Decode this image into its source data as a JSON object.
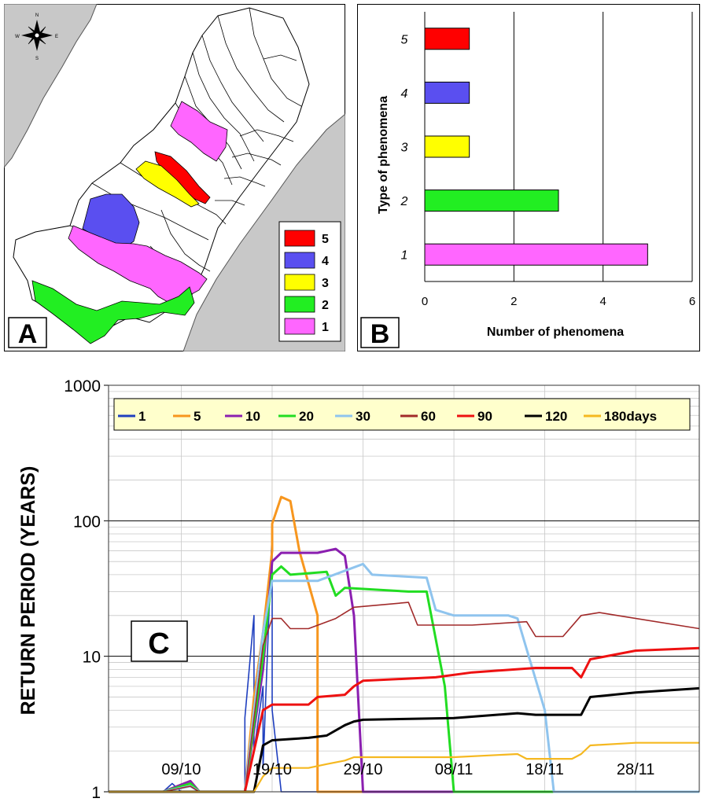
{
  "panel_a": {
    "letter": "A",
    "compass": {
      "n": "N",
      "s": "S",
      "e": "E",
      "w": "W"
    },
    "legend": [
      {
        "label": "5",
        "color": "#ff0000"
      },
      {
        "label": "4",
        "color": "#5a4ff0"
      },
      {
        "label": "3",
        "color": "#ffff00"
      },
      {
        "label": "2",
        "color": "#22ee22"
      },
      {
        "label": "1",
        "color": "#ff66ff"
      }
    ]
  },
  "panel_b": {
    "letter": "B"
  },
  "panel_c": {
    "letter": "C"
  },
  "chart_data": [
    {
      "type": "bar",
      "orientation": "horizontal",
      "categories": [
        "5",
        "4",
        "3",
        "2",
        "1"
      ],
      "values": [
        1,
        1,
        1,
        3,
        5
      ],
      "colors": [
        "#ff0000",
        "#5a4ff0",
        "#ffff00",
        "#22ee22",
        "#ff66ff"
      ],
      "xlabel": "Number of phenomena",
      "ylabel": "Type of phenomena",
      "xlim": [
        0,
        6
      ],
      "xticks": [
        "0",
        "2",
        "4",
        "6"
      ],
      "grid": "vertical"
    },
    {
      "type": "line",
      "ylabel": "RETURN PERIOD (YEARS)",
      "yscale": "log",
      "ylim": [
        1,
        1000
      ],
      "yticks": [
        "1",
        "10",
        "100",
        "1000"
      ],
      "xlim": [
        "2010-10-01",
        "2010-12-05"
      ],
      "xticks": [
        "09/10",
        "19/10",
        "29/10",
        "08/11",
        "18/11",
        "28/11"
      ],
      "xtick_dates": [
        "2010-10-09",
        "2010-10-19",
        "2010-10-29",
        "2010-11-08",
        "2010-11-18",
        "2010-11-28"
      ],
      "legend_position": "top",
      "series": [
        {
          "name": "1",
          "color": "#1f3fbf",
          "x": [
            "2010-10-01",
            "2010-10-07",
            "2010-10-08",
            "2010-10-09",
            "2010-10-11",
            "2010-10-16",
            "2010-10-16",
            "2010-10-17",
            "2010-10-17",
            "2010-10-18",
            "2010-10-18",
            "2010-10-19",
            "2010-10-19",
            "2010-10-20",
            "2010-12-05"
          ],
          "y": [
            1,
            1,
            1.15,
            1,
            1,
            1,
            3.5,
            20,
            2,
            6,
            1.5,
            85,
            4,
            1,
            1
          ]
        },
        {
          "name": "5",
          "color": "#f7961e",
          "x": [
            "2010-10-01",
            "2010-10-07",
            "2010-10-10",
            "2010-10-11",
            "2010-10-16",
            "2010-10-17",
            "2010-10-18",
            "2010-10-19",
            "2010-10-19",
            "2010-10-20",
            "2010-10-21",
            "2010-10-22",
            "2010-10-24",
            "2010-10-24",
            "2010-12-05"
          ],
          "y": [
            1,
            1,
            1.2,
            1,
            1,
            5,
            15,
            60,
            95,
            150,
            140,
            60,
            20,
            1,
            1
          ]
        },
        {
          "name": "10",
          "color": "#8b1fb0",
          "x": [
            "2010-10-01",
            "2010-10-07",
            "2010-10-10",
            "2010-10-11",
            "2010-10-16",
            "2010-10-18",
            "2010-10-19",
            "2010-10-20",
            "2010-10-24",
            "2010-10-26",
            "2010-10-27",
            "2010-10-28",
            "2010-10-29",
            "2010-12-05"
          ],
          "y": [
            1,
            1,
            1.2,
            1,
            1,
            8,
            50,
            58,
            58,
            62,
            55,
            20,
            1,
            1
          ]
        },
        {
          "name": "20",
          "color": "#22dd22",
          "x": [
            "2010-10-01",
            "2010-10-07",
            "2010-10-10",
            "2010-10-11",
            "2010-10-16",
            "2010-10-18",
            "2010-10-19",
            "2010-10-20",
            "2010-10-21",
            "2010-10-25",
            "2010-10-26",
            "2010-10-27",
            "2010-11-03",
            "2010-11-05",
            "2010-11-07",
            "2010-11-08",
            "2010-12-05"
          ],
          "y": [
            1,
            1,
            1.15,
            1,
            1,
            10,
            40,
            46,
            40,
            42,
            28,
            32,
            30,
            30,
            6,
            1,
            1
          ]
        },
        {
          "name": "30",
          "color": "#8fc4ee",
          "x": [
            "2010-10-01",
            "2010-10-07",
            "2010-10-10",
            "2010-10-11",
            "2010-10-16",
            "2010-10-18",
            "2010-10-19",
            "2010-10-24",
            "2010-10-29",
            "2010-10-30",
            "2010-11-05",
            "2010-11-06",
            "2010-11-08",
            "2010-11-14",
            "2010-11-15",
            "2010-11-18",
            "2010-11-19",
            "2010-12-05"
          ],
          "y": [
            1,
            1,
            1.1,
            1,
            1,
            15,
            36,
            36,
            48,
            40,
            38,
            22,
            20,
            20,
            19,
            4,
            1,
            1
          ]
        },
        {
          "name": "60",
          "color": "#a12a2a",
          "x": [
            "2010-10-01",
            "2010-10-07",
            "2010-10-10",
            "2010-10-11",
            "2010-10-16",
            "2010-10-18",
            "2010-10-19",
            "2010-10-20",
            "2010-10-21",
            "2010-10-23",
            "2010-10-26",
            "2010-10-28",
            "2010-11-03",
            "2010-11-04",
            "2010-11-10",
            "2010-11-16",
            "2010-11-17",
            "2010-11-20",
            "2010-11-22",
            "2010-11-24",
            "2010-11-26",
            "2010-12-05"
          ],
          "y": [
            1,
            1,
            1.1,
            1,
            1,
            12,
            19,
            19,
            16,
            16,
            19,
            23,
            25,
            17,
            17,
            18,
            14,
            14,
            20,
            21,
            20,
            16
          ]
        },
        {
          "name": "90",
          "color": "#ee1111",
          "x": [
            "2010-10-01",
            "2010-10-16",
            "2010-10-18",
            "2010-10-19",
            "2010-10-20",
            "2010-10-23",
            "2010-10-24",
            "2010-10-27",
            "2010-10-28",
            "2010-10-29",
            "2010-11-06",
            "2010-11-10",
            "2010-11-17",
            "2010-11-21",
            "2010-11-22",
            "2010-11-23",
            "2010-11-28",
            "2010-12-05"
          ],
          "y": [
            1,
            1,
            4,
            4.4,
            4.4,
            4.4,
            5,
            5.2,
            6,
            6.6,
            7,
            7.6,
            8.2,
            8.2,
            7,
            9.5,
            11,
            11.5
          ]
        },
        {
          "name": "120",
          "color": "#000000",
          "x": [
            "2010-10-01",
            "2010-10-17",
            "2010-10-18",
            "2010-10-19",
            "2010-10-23",
            "2010-10-25",
            "2010-10-27",
            "2010-10-28",
            "2010-10-29",
            "2010-11-08",
            "2010-11-15",
            "2010-11-17",
            "2010-11-22",
            "2010-11-23",
            "2010-11-28",
            "2010-12-05"
          ],
          "y": [
            1,
            1,
            2.2,
            2.4,
            2.5,
            2.6,
            3.1,
            3.3,
            3.4,
            3.5,
            3.8,
            3.7,
            3.7,
            5,
            5.4,
            5.8
          ]
        },
        {
          "name": "180days",
          "color": "#f5b820",
          "x": [
            "2010-10-01",
            "2010-10-17",
            "2010-10-18",
            "2010-10-19",
            "2010-10-23",
            "2010-10-25",
            "2010-10-27",
            "2010-10-28",
            "2010-11-08",
            "2010-11-15",
            "2010-11-16",
            "2010-11-21",
            "2010-11-22",
            "2010-11-23",
            "2010-11-28",
            "2010-12-05"
          ],
          "y": [
            1,
            1,
            1.3,
            1.5,
            1.5,
            1.6,
            1.7,
            1.8,
            1.8,
            1.9,
            1.75,
            1.75,
            1.9,
            2.2,
            2.3,
            2.3
          ]
        }
      ]
    }
  ]
}
